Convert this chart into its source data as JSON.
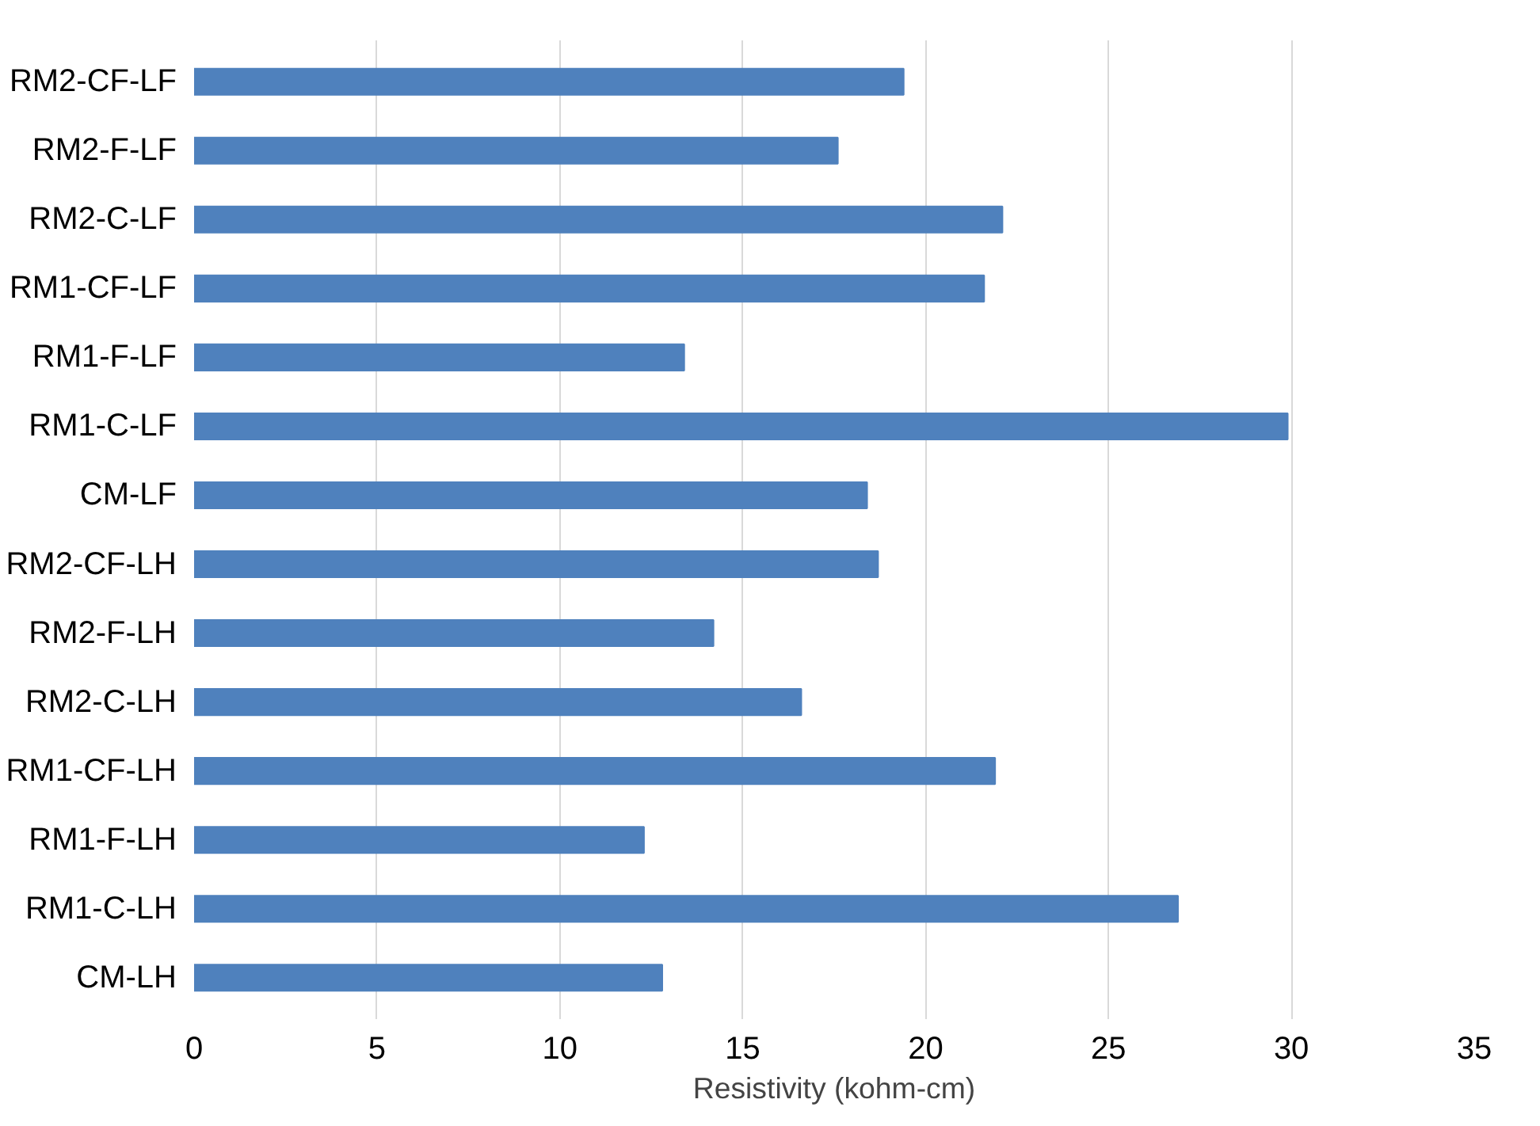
{
  "chart_data": {
    "type": "bar",
    "orientation": "horizontal",
    "xlabel": "Resistivity (kohm-cm)",
    "categories": [
      "RM2-CF-LF",
      "RM2-F-LF",
      "RM2-C-LF",
      "RM1-CF-LF",
      "RM1-F-LF",
      "RM1-C-LF",
      "CM-LF",
      "RM2-CF-LH",
      "RM2-F-LH",
      "RM2-C-LH",
      "RM1-CF-LH",
      "RM1-F-LH",
      "RM1-C-LH",
      "CM-LH"
    ],
    "values": [
      19.4,
      17.6,
      22.1,
      21.6,
      13.4,
      29.9,
      18.4,
      18.7,
      14.2,
      16.6,
      21.9,
      12.3,
      26.9,
      12.8
    ],
    "color": "#4f81bd",
    "xlim": [
      0,
      35
    ],
    "xticks": [
      0,
      5,
      10,
      15,
      20,
      25,
      30,
      35
    ],
    "grid": "x"
  }
}
